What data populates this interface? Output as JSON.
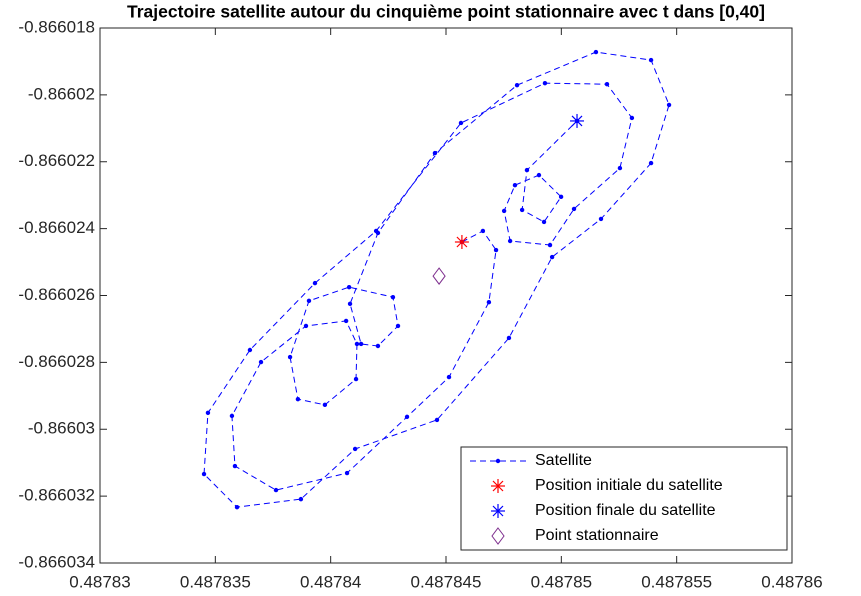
{
  "chart_data": {
    "type": "line",
    "title": "Trajectoire satellite autour du cinquième point stationnaire avec t dans [0,40]",
    "xlim": [
      0.48783,
      0.48786
    ],
    "xticks": [
      0.48783,
      0.487835,
      0.48784,
      0.487845,
      0.48785,
      0.487855,
      0.48786
    ],
    "ylim": [
      -0.866034,
      -0.866018
    ],
    "yticks": [
      -0.866034,
      -0.866032,
      -0.86603,
      -0.866028,
      -0.866026,
      -0.866024,
      -0.866022,
      -0.86602,
      -0.866018
    ],
    "grid": false,
    "legend_position": "southeast",
    "series": [
      {
        "name": "Satellite",
        "color": "#0000ff",
        "marker": "dot",
        "line": "dashed",
        "x": [
          0.48784569,
          0.4878466,
          0.48784717,
          0.48784686,
          0.48784513,
          0.48784331,
          0.48784071,
          0.48783763,
          0.48783585,
          0.48783572,
          0.48783698,
          0.48783893,
          0.48784067,
          0.48784114,
          0.4878411,
          0.48783975,
          0.48783858,
          0.48783824,
          0.48783906,
          0.4878408,
          0.4878427,
          0.48784292,
          0.48784205,
          0.48784132,
          0.48784084,
          0.48784205,
          0.48784452,
          0.48784808,
          0.4878515,
          0.48785389,
          0.48785467,
          0.48785389,
          0.48785172,
          0.4878496,
          0.48784773,
          0.48784461,
          0.48784106,
          0.48783871,
          0.48783594,
          0.48783451,
          0.48783468,
          0.4878365,
          0.48783932,
          0.48784197,
          0.48784565,
          0.48784929,
          0.48785198,
          0.48785306,
          0.48785254,
          0.48785055,
          0.48784951,
          0.48784778,
          0.48784752,
          0.48784799,
          0.48784903,
          0.48784999,
          0.48784925,
          0.4878483,
          0.48784851,
          0.48785068
        ],
        "values": [
          -0.8660244,
          -0.86602407,
          -0.86602464,
          -0.8660262,
          -0.86602844,
          -0.86602963,
          -0.86603131,
          -0.86603182,
          -0.8660311,
          -0.8660296,
          -0.86602799,
          -0.86602691,
          -0.86602676,
          -0.86602745,
          -0.8660285,
          -0.86602927,
          -0.8660291,
          -0.86602784,
          -0.86602616,
          -0.86602575,
          -0.86602605,
          -0.86602691,
          -0.86602751,
          -0.86602745,
          -0.86602625,
          -0.86602413,
          -0.86602174,
          -0.86601971,
          -0.86601872,
          -0.86601896,
          -0.8660203,
          -0.86602204,
          -0.86602371,
          -0.86602485,
          -0.86602727,
          -0.86602972,
          -0.86603059,
          -0.86603209,
          -0.86603233,
          -0.86603134,
          -0.86602951,
          -0.86602763,
          -0.86602563,
          -0.86602407,
          -0.86602084,
          -0.86601965,
          -0.86601968,
          -0.86602069,
          -0.86602219,
          -0.86602341,
          -0.86602449,
          -0.86602437,
          -0.86602347,
          -0.8660227,
          -0.8660224,
          -0.86602305,
          -0.8660238,
          -0.86602344,
          -0.86602225,
          -0.86602078
        ]
      },
      {
        "name": "Position initiale du satellite",
        "color": "#ff0000",
        "marker": "star",
        "x": [
          0.48784569
        ],
        "values": [
          -0.8660244
        ]
      },
      {
        "name": "Position finale du satellite",
        "color": "#0000ff",
        "marker": "star",
        "x": [
          0.48785068
        ],
        "values": [
          -0.86602078
        ]
      },
      {
        "name": "Point stationnaire",
        "color": "#7e2f8e",
        "marker": "diamond",
        "x": [
          0.4878447
        ],
        "values": [
          -0.86602542
        ]
      }
    ]
  }
}
